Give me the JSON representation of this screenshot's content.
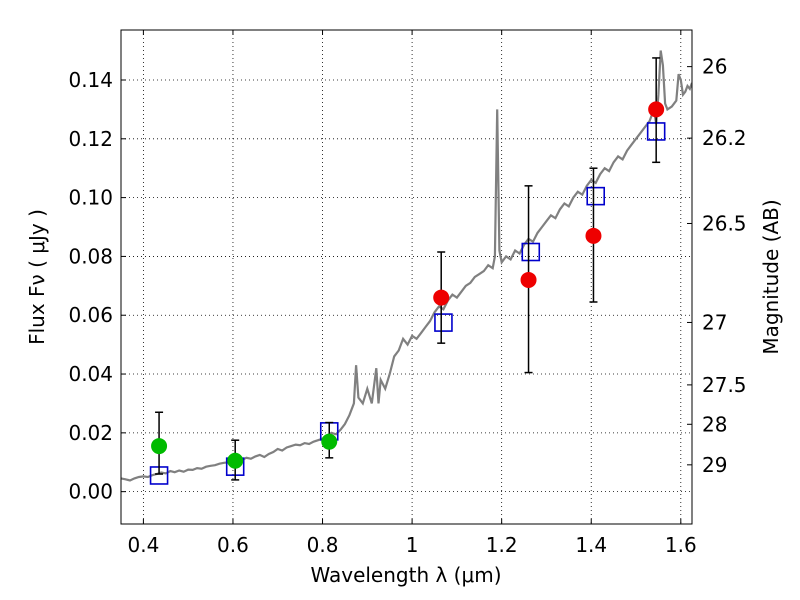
{
  "chart_data": {
    "type": "scatter",
    "xlabel": "Wavelength  λ (μm)",
    "ylabel": "Flux  Fν  ( μJy )",
    "y2label": "Magnitude (AB)",
    "xlim": [
      0.35,
      1.625
    ],
    "ylim": [
      -0.011,
      0.157
    ],
    "grid": true,
    "x_ticks": [
      {
        "value": 0.4,
        "label": "0.4"
      },
      {
        "value": 0.6,
        "label": "0.6"
      },
      {
        "value": 0.8,
        "label": "0.8"
      },
      {
        "value": 1.0,
        "label": "1"
      },
      {
        "value": 1.2,
        "label": "1.2"
      },
      {
        "value": 1.4,
        "label": "1.4"
      },
      {
        "value": 1.6,
        "label": "1.6"
      }
    ],
    "y_ticks": [
      {
        "value": 0.0,
        "label": "0.00"
      },
      {
        "value": 0.02,
        "label": "0.02"
      },
      {
        "value": 0.04,
        "label": "0.04"
      },
      {
        "value": 0.06,
        "label": "0.06"
      },
      {
        "value": 0.08,
        "label": "0.08"
      },
      {
        "value": 0.1,
        "label": "0.10"
      },
      {
        "value": 0.12,
        "label": "0.12"
      },
      {
        "value": 0.14,
        "label": "0.14"
      }
    ],
    "y2_ticks": [
      {
        "mag": 26,
        "label": "26"
      },
      {
        "mag": 26.2,
        "label": "26.2"
      },
      {
        "mag": 26.5,
        "label": "26.5"
      },
      {
        "mag": 27,
        "label": "27"
      },
      {
        "mag": 27.5,
        "label": "27.5"
      },
      {
        "mag": 28,
        "label": "28"
      },
      {
        "mag": 29,
        "label": "29"
      }
    ],
    "series": [
      {
        "kind": "line",
        "color": "#808080",
        "points": [
          [
            0.35,
            0.0045
          ],
          [
            0.36,
            0.0042
          ],
          [
            0.37,
            0.0038
          ],
          [
            0.38,
            0.0045
          ],
          [
            0.39,
            0.005
          ],
          [
            0.4,
            0.0052
          ],
          [
            0.41,
            0.005
          ],
          [
            0.42,
            0.0056
          ],
          [
            0.43,
            0.006
          ],
          [
            0.44,
            0.0065
          ],
          [
            0.45,
            0.0062
          ],
          [
            0.46,
            0.007
          ],
          [
            0.47,
            0.0066
          ],
          [
            0.48,
            0.0072
          ],
          [
            0.49,
            0.0068
          ],
          [
            0.5,
            0.0075
          ],
          [
            0.51,
            0.0074
          ],
          [
            0.52,
            0.008
          ],
          [
            0.53,
            0.0078
          ],
          [
            0.54,
            0.0085
          ],
          [
            0.55,
            0.0088
          ],
          [
            0.56,
            0.009
          ],
          [
            0.57,
            0.0095
          ],
          [
            0.58,
            0.0098
          ],
          [
            0.59,
            0.01
          ],
          [
            0.6,
            0.0105
          ],
          [
            0.61,
            0.0102
          ],
          [
            0.62,
            0.0108
          ],
          [
            0.63,
            0.0115
          ],
          [
            0.64,
            0.0112
          ],
          [
            0.65,
            0.012
          ],
          [
            0.66,
            0.0125
          ],
          [
            0.67,
            0.0118
          ],
          [
            0.68,
            0.0128
          ],
          [
            0.69,
            0.0135
          ],
          [
            0.7,
            0.0145
          ],
          [
            0.71,
            0.014
          ],
          [
            0.72,
            0.015
          ],
          [
            0.73,
            0.0155
          ],
          [
            0.74,
            0.016
          ],
          [
            0.75,
            0.0158
          ],
          [
            0.76,
            0.0165
          ],
          [
            0.77,
            0.0162
          ],
          [
            0.78,
            0.017
          ],
          [
            0.79,
            0.0175
          ],
          [
            0.8,
            0.018
          ],
          [
            0.81,
            0.019
          ],
          [
            0.82,
            0.02
          ],
          [
            0.83,
            0.0195
          ],
          [
            0.84,
            0.021
          ],
          [
            0.85,
            0.023
          ],
          [
            0.86,
            0.026
          ],
          [
            0.87,
            0.03
          ],
          [
            0.875,
            0.043
          ],
          [
            0.88,
            0.032
          ],
          [
            0.89,
            0.03
          ],
          [
            0.9,
            0.035
          ],
          [
            0.91,
            0.03
          ],
          [
            0.92,
            0.042
          ],
          [
            0.925,
            0.03
          ],
          [
            0.93,
            0.038
          ],
          [
            0.94,
            0.035
          ],
          [
            0.95,
            0.04
          ],
          [
            0.96,
            0.046
          ],
          [
            0.97,
            0.048
          ],
          [
            0.98,
            0.052
          ],
          [
            0.99,
            0.05
          ],
          [
            1.0,
            0.053
          ],
          [
            1.01,
            0.052
          ],
          [
            1.02,
            0.054
          ],
          [
            1.03,
            0.056
          ],
          [
            1.04,
            0.058
          ],
          [
            1.05,
            0.061
          ],
          [
            1.06,
            0.063
          ],
          [
            1.07,
            0.062
          ],
          [
            1.08,
            0.065
          ],
          [
            1.09,
            0.067
          ],
          [
            1.1,
            0.066
          ],
          [
            1.11,
            0.068
          ],
          [
            1.12,
            0.07
          ],
          [
            1.13,
            0.071
          ],
          [
            1.14,
            0.073
          ],
          [
            1.15,
            0.074
          ],
          [
            1.16,
            0.075
          ],
          [
            1.17,
            0.077
          ],
          [
            1.18,
            0.076
          ],
          [
            1.185,
            0.08
          ],
          [
            1.19,
            0.13
          ],
          [
            1.195,
            0.082
          ],
          [
            1.2,
            0.078
          ],
          [
            1.21,
            0.08
          ],
          [
            1.22,
            0.079
          ],
          [
            1.23,
            0.082
          ],
          [
            1.24,
            0.081
          ],
          [
            1.25,
            0.084
          ],
          [
            1.26,
            0.086
          ],
          [
            1.27,
            0.085
          ],
          [
            1.28,
            0.088
          ],
          [
            1.29,
            0.09
          ],
          [
            1.3,
            0.092
          ],
          [
            1.31,
            0.094
          ],
          [
            1.32,
            0.093
          ],
          [
            1.33,
            0.096
          ],
          [
            1.34,
            0.098
          ],
          [
            1.35,
            0.097
          ],
          [
            1.36,
            0.1
          ],
          [
            1.37,
            0.102
          ],
          [
            1.38,
            0.101
          ],
          [
            1.39,
            0.104
          ],
          [
            1.4,
            0.106
          ],
          [
            1.41,
            0.105
          ],
          [
            1.42,
            0.108
          ],
          [
            1.43,
            0.11
          ],
          [
            1.44,
            0.109
          ],
          [
            1.45,
            0.112
          ],
          [
            1.46,
            0.114
          ],
          [
            1.47,
            0.113
          ],
          [
            1.48,
            0.116
          ],
          [
            1.49,
            0.118
          ],
          [
            1.5,
            0.12
          ],
          [
            1.51,
            0.122
          ],
          [
            1.52,
            0.124
          ],
          [
            1.53,
            0.126
          ],
          [
            1.54,
            0.13
          ],
          [
            1.545,
            0.125
          ],
          [
            1.55,
            0.135
          ],
          [
            1.555,
            0.15
          ],
          [
            1.56,
            0.145
          ],
          [
            1.565,
            0.132
          ],
          [
            1.57,
            0.13
          ],
          [
            1.58,
            0.131
          ],
          [
            1.59,
            0.133
          ],
          [
            1.595,
            0.142
          ],
          [
            1.6,
            0.14
          ],
          [
            1.605,
            0.135
          ],
          [
            1.61,
            0.136
          ],
          [
            1.615,
            0.138
          ],
          [
            1.62,
            0.137
          ],
          [
            1.625,
            0.139
          ]
        ]
      },
      {
        "kind": "open-square",
        "color": "#0000cc",
        "points": [
          [
            0.435,
            0.0055
          ],
          [
            0.605,
            0.0085
          ],
          [
            0.815,
            0.0205
          ],
          [
            1.07,
            0.0575
          ],
          [
            1.265,
            0.0815
          ],
          [
            1.41,
            0.1005
          ],
          [
            1.545,
            0.1225
          ]
        ]
      },
      {
        "kind": "errorbar",
        "color": "#000000",
        "points": [
          {
            "x": 0.435,
            "lo": 0.006,
            "hi": 0.027
          },
          {
            "x": 0.605,
            "lo": 0.004,
            "hi": 0.0175
          },
          {
            "x": 0.815,
            "lo": 0.0115,
            "hi": 0.0235
          },
          {
            "x": 1.065,
            "lo": 0.0505,
            "hi": 0.0815
          },
          {
            "x": 1.26,
            "lo": 0.0405,
            "hi": 0.104
          },
          {
            "x": 1.405,
            "lo": 0.0645,
            "hi": 0.11
          },
          {
            "x": 1.545,
            "lo": 0.112,
            "hi": 0.1475
          }
        ]
      },
      {
        "kind": "filled-circle",
        "color": "#00bb00",
        "points": [
          [
            0.435,
            0.0155
          ],
          [
            0.605,
            0.0105
          ],
          [
            0.815,
            0.017
          ]
        ]
      },
      {
        "kind": "filled-circle",
        "color": "#ee0000",
        "points": [
          [
            1.065,
            0.066
          ],
          [
            1.26,
            0.072
          ],
          [
            1.405,
            0.087
          ],
          [
            1.545,
            0.13
          ]
        ]
      }
    ]
  }
}
